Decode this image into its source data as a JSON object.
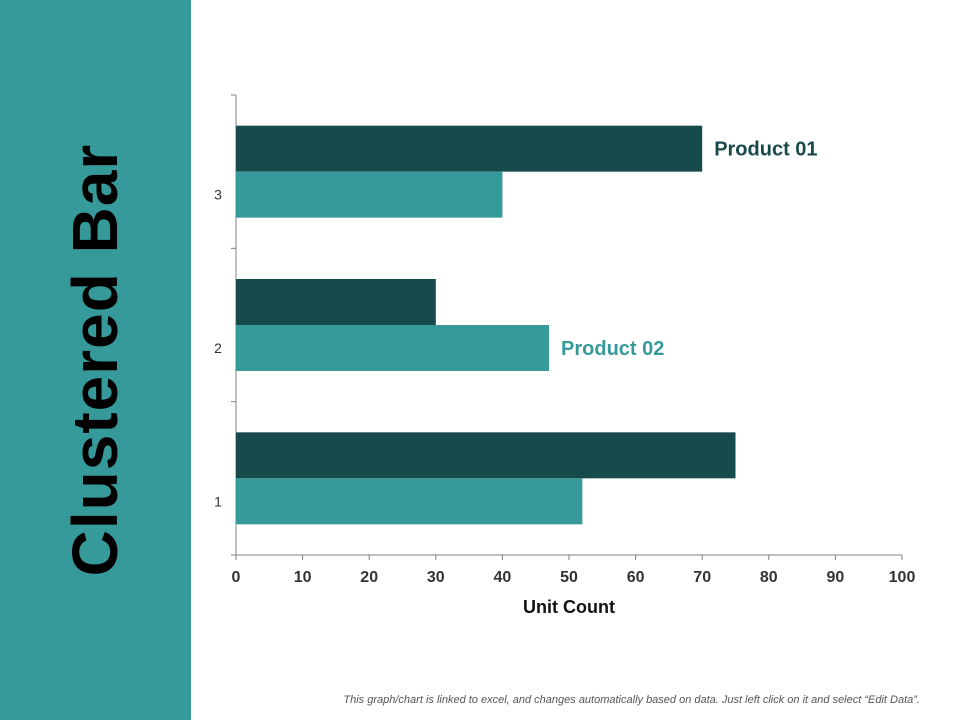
{
  "title": "Clustered Bar",
  "footnote": "This graph/chart is linked to excel, and changes automatically based on data. Just left click on it and select “Edit Data”.",
  "colors": {
    "sidebar": "#359a99",
    "product01": "#174a4b",
    "product02": "#359a99"
  },
  "chart_data": {
    "type": "bar",
    "orientation": "horizontal",
    "categories": [
      "1",
      "2",
      "3"
    ],
    "series": [
      {
        "name": "Product 01",
        "values": [
          75,
          30,
          70
        ]
      },
      {
        "name": "Product 02",
        "values": [
          52,
          47,
          40
        ]
      }
    ],
    "xlabel": "Unit Count",
    "ylabel": "",
    "xlim": [
      0,
      100
    ],
    "xticks": [
      0,
      10,
      20,
      30,
      40,
      50,
      60,
      70,
      80,
      90,
      100
    ],
    "grid": false,
    "legend": "inline labels next to bars"
  }
}
